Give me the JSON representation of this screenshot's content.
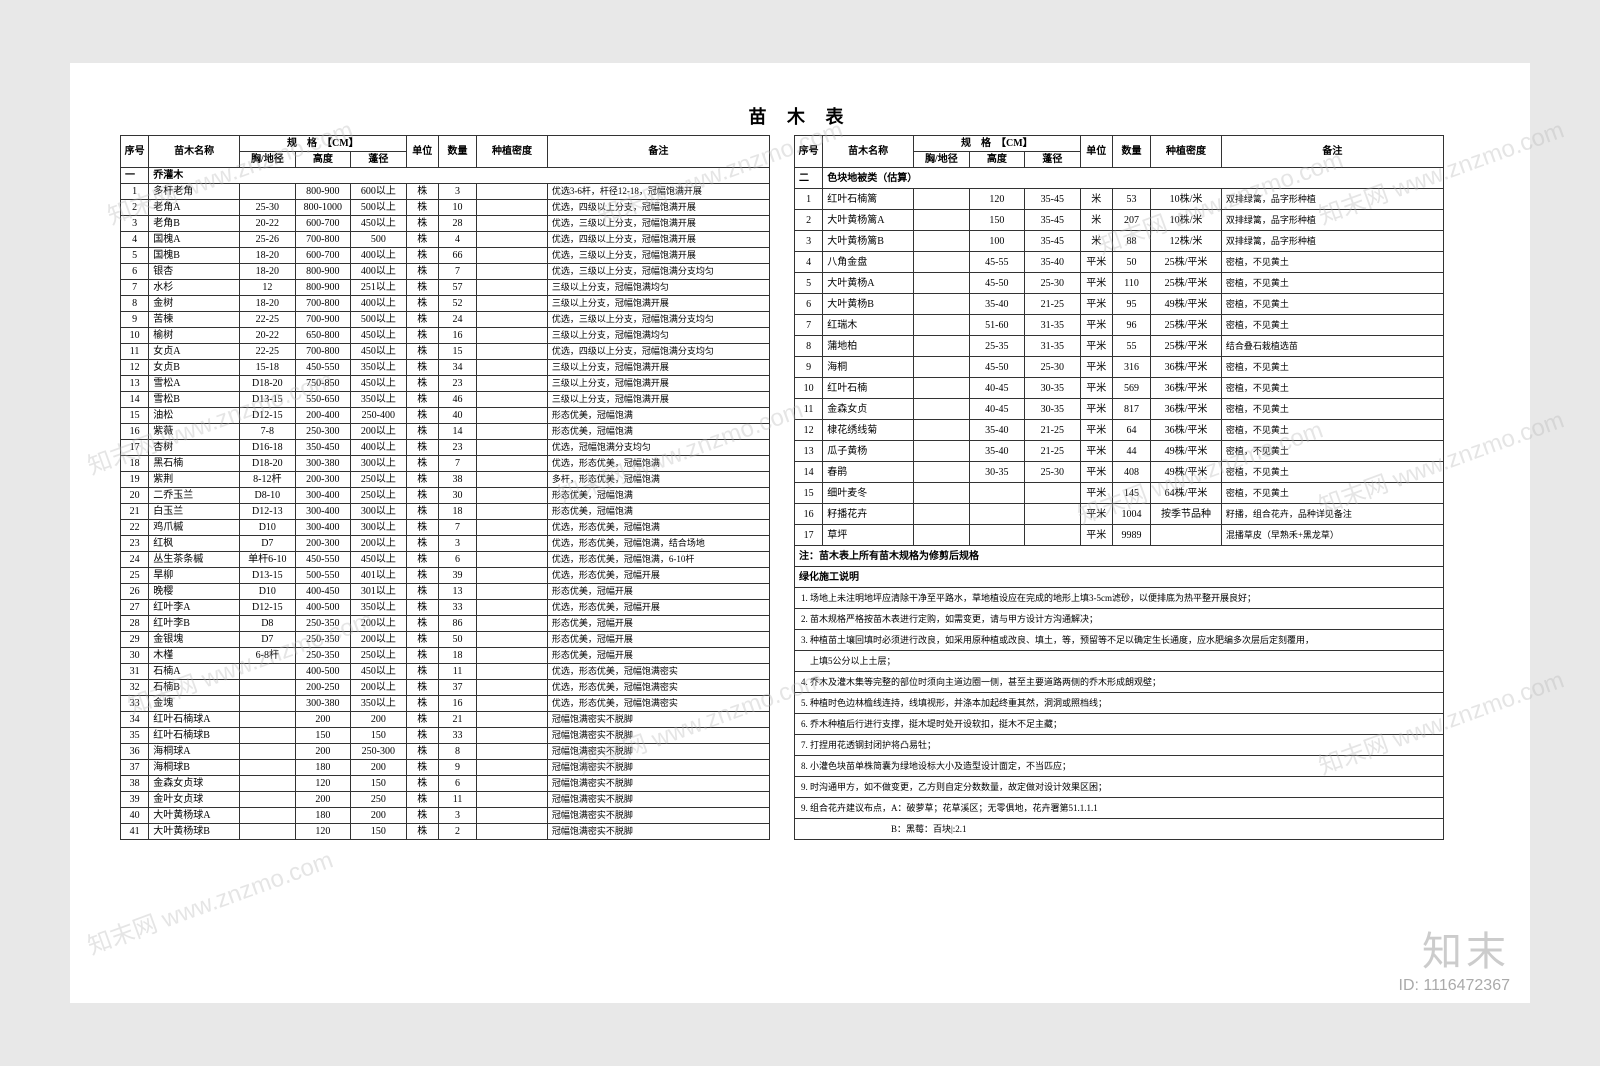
{
  "title": "苗 木 表",
  "headers": {
    "idx": "序号",
    "name": "苗木名称",
    "spec_group": "规　格　【CM】",
    "spec1": "胸/地径",
    "spec2": "高度",
    "spec3": "蓬径",
    "unit": "单位",
    "qty": "数量",
    "density": "种植密度",
    "remark": "备注"
  },
  "left_section": "一　乔灌木",
  "left_rows": [
    {
      "i": "1",
      "n": "多杆老角",
      "s1": "",
      "s2": "800-900",
      "s3": "600以上",
      "u": "株",
      "q": "3",
      "d": "",
      "r": "优选3-6杆，杆径12-18，冠幅饱满开展"
    },
    {
      "i": "2",
      "n": "老角A",
      "s1": "25-30",
      "s2": "800-1000",
      "s3": "500以上",
      "u": "株",
      "q": "10",
      "d": "",
      "r": "优选，四级以上分支，冠幅饱满开展"
    },
    {
      "i": "3",
      "n": "老角B",
      "s1": "20-22",
      "s2": "600-700",
      "s3": "450以上",
      "u": "株",
      "q": "28",
      "d": "",
      "r": "优选，三级以上分支，冠幅饱满开展"
    },
    {
      "i": "4",
      "n": "国槐A",
      "s1": "25-26",
      "s2": "700-800",
      "s3": "500",
      "u": "株",
      "q": "4",
      "d": "",
      "r": "优选，四级以上分支，冠幅饱满开展"
    },
    {
      "i": "5",
      "n": "国槐B",
      "s1": "18-20",
      "s2": "600-700",
      "s3": "400以上",
      "u": "株",
      "q": "66",
      "d": "",
      "r": "优选，三级以上分支，冠幅饱满开展"
    },
    {
      "i": "6",
      "n": "银杏",
      "s1": "18-20",
      "s2": "800-900",
      "s3": "400以上",
      "u": "株",
      "q": "7",
      "d": "",
      "r": "优选，三级以上分支，冠幅饱满分支均匀"
    },
    {
      "i": "7",
      "n": "水杉",
      "s1": "12",
      "s2": "800-900",
      "s3": "251以上",
      "u": "株",
      "q": "57",
      "d": "",
      "r": "三级以上分支，冠幅饱满均匀"
    },
    {
      "i": "8",
      "n": "金树",
      "s1": "18-20",
      "s2": "700-800",
      "s3": "400以上",
      "u": "株",
      "q": "52",
      "d": "",
      "r": "三级以上分支，冠幅饱满开展"
    },
    {
      "i": "9",
      "n": "苦楝",
      "s1": "22-25",
      "s2": "700-900",
      "s3": "500以上",
      "u": "株",
      "q": "24",
      "d": "",
      "r": "优选，三级以上分支，冠幅饱满分支均匀"
    },
    {
      "i": "10",
      "n": "榆树",
      "s1": "20-22",
      "s2": "650-800",
      "s3": "450以上",
      "u": "株",
      "q": "16",
      "d": "",
      "r": "三级以上分支，冠幅饱满均匀"
    },
    {
      "i": "11",
      "n": "女贞A",
      "s1": "22-25",
      "s2": "700-800",
      "s3": "450以上",
      "u": "株",
      "q": "15",
      "d": "",
      "r": "优选，四级以上分支，冠幅饱满分支均匀"
    },
    {
      "i": "12",
      "n": "女贞B",
      "s1": "15-18",
      "s2": "450-550",
      "s3": "350以上",
      "u": "株",
      "q": "34",
      "d": "",
      "r": "三级以上分支，冠幅饱满开展"
    },
    {
      "i": "13",
      "n": "雪松A",
      "s1": "D18-20",
      "s2": "750-850",
      "s3": "450以上",
      "u": "株",
      "q": "23",
      "d": "",
      "r": "三级以上分支，冠幅饱满开展"
    },
    {
      "i": "14",
      "n": "雪松B",
      "s1": "D13-15",
      "s2": "550-650",
      "s3": "350以上",
      "u": "株",
      "q": "46",
      "d": "",
      "r": "三级以上分支，冠幅饱满开展"
    },
    {
      "i": "15",
      "n": "油松",
      "s1": "D12-15",
      "s2": "200-400",
      "s3": "250-400",
      "u": "株",
      "q": "40",
      "d": "",
      "r": "形态优美，冠幅饱满"
    },
    {
      "i": "16",
      "n": "紫薇",
      "s1": "7-8",
      "s2": "250-300",
      "s3": "200以上",
      "u": "株",
      "q": "14",
      "d": "",
      "r": "形态优美，冠幅饱满"
    },
    {
      "i": "17",
      "n": "杏树",
      "s1": "D16-18",
      "s2": "350-450",
      "s3": "400以上",
      "u": "株",
      "q": "23",
      "d": "",
      "r": "优选，冠幅饱满分支均匀"
    },
    {
      "i": "18",
      "n": "黑石楠",
      "s1": "D18-20",
      "s2": "300-380",
      "s3": "300以上",
      "u": "株",
      "q": "7",
      "d": "",
      "r": "优选，形态优美，冠幅饱满"
    },
    {
      "i": "19",
      "n": "紫荆",
      "s1": "8-12杆",
      "s2": "200-300",
      "s3": "250以上",
      "u": "株",
      "q": "38",
      "d": "",
      "r": "多杆，形态优美，冠幅饱满"
    },
    {
      "i": "20",
      "n": "二乔玉兰",
      "s1": "D8-10",
      "s2": "300-400",
      "s3": "250以上",
      "u": "株",
      "q": "30",
      "d": "",
      "r": "形态优美，冠幅饱满"
    },
    {
      "i": "21",
      "n": "白玉兰",
      "s1": "D12-13",
      "s2": "300-400",
      "s3": "300以上",
      "u": "株",
      "q": "18",
      "d": "",
      "r": "形态优美，冠幅饱满"
    },
    {
      "i": "22",
      "n": "鸡爪槭",
      "s1": "D10",
      "s2": "300-400",
      "s3": "300以上",
      "u": "株",
      "q": "7",
      "d": "",
      "r": "优选，形态优美，冠幅饱满"
    },
    {
      "i": "23",
      "n": "红枫",
      "s1": "D7",
      "s2": "200-300",
      "s3": "200以上",
      "u": "株",
      "q": "3",
      "d": "",
      "r": "优选，形态优美，冠幅饱满，结合场地"
    },
    {
      "i": "24",
      "n": "丛生茶条槭",
      "s1": "单杆6-10",
      "s2": "450-550",
      "s3": "450以上",
      "u": "株",
      "q": "6",
      "d": "",
      "r": "优选，形态优美，冠幅饱满，6-10杆"
    },
    {
      "i": "25",
      "n": "旱柳",
      "s1": "D13-15",
      "s2": "500-550",
      "s3": "401以上",
      "u": "株",
      "q": "39",
      "d": "",
      "r": "优选，形态优美，冠幅开展"
    },
    {
      "i": "26",
      "n": "晚樱",
      "s1": "D10",
      "s2": "400-450",
      "s3": "301以上",
      "u": "株",
      "q": "13",
      "d": "",
      "r": "形态优美，冠幅开展"
    },
    {
      "i": "27",
      "n": "红叶李A",
      "s1": "D12-15",
      "s2": "400-500",
      "s3": "350以上",
      "u": "株",
      "q": "33",
      "d": "",
      "r": "优选，形态优美，冠幅开展"
    },
    {
      "i": "28",
      "n": "红叶李B",
      "s1": "D8",
      "s2": "250-350",
      "s3": "200以上",
      "u": "株",
      "q": "86",
      "d": "",
      "r": "形态优美，冠幅开展"
    },
    {
      "i": "29",
      "n": "金银塊",
      "s1": "D7",
      "s2": "250-350",
      "s3": "200以上",
      "u": "株",
      "q": "50",
      "d": "",
      "r": "形态优美，冠幅开展"
    },
    {
      "i": "30",
      "n": "木槿",
      "s1": "6-8杆",
      "s2": "250-350",
      "s3": "250以上",
      "u": "株",
      "q": "18",
      "d": "",
      "r": "形态优美，冠幅开展"
    },
    {
      "i": "31",
      "n": "石楠A",
      "s1": "",
      "s2": "400-500",
      "s3": "450以上",
      "u": "株",
      "q": "11",
      "d": "",
      "r": "优选，形态优美，冠幅饱满密实"
    },
    {
      "i": "32",
      "n": "石楠B",
      "s1": "",
      "s2": "200-250",
      "s3": "200以上",
      "u": "株",
      "q": "37",
      "d": "",
      "r": "优选，形态优美，冠幅饱满密实"
    },
    {
      "i": "33",
      "n": "金塊",
      "s1": "",
      "s2": "300-380",
      "s3": "350以上",
      "u": "株",
      "q": "16",
      "d": "",
      "r": "优选，形态优美，冠幅饱满密实"
    },
    {
      "i": "34",
      "n": "红叶石楠球A",
      "s1": "",
      "s2": "200",
      "s3": "200",
      "u": "株",
      "q": "21",
      "d": "",
      "r": "冠幅饱满密实不脱脚"
    },
    {
      "i": "35",
      "n": "红叶石楠球B",
      "s1": "",
      "s2": "150",
      "s3": "150",
      "u": "株",
      "q": "33",
      "d": "",
      "r": "冠幅饱满密实不脱脚"
    },
    {
      "i": "36",
      "n": "海桐球A",
      "s1": "",
      "s2": "200",
      "s3": "250-300",
      "u": "株",
      "q": "8",
      "d": "",
      "r": "冠幅饱满密实不脱脚"
    },
    {
      "i": "37",
      "n": "海桐球B",
      "s1": "",
      "s2": "180",
      "s3": "200",
      "u": "株",
      "q": "9",
      "d": "",
      "r": "冠幅饱满密实不脱脚"
    },
    {
      "i": "38",
      "n": "金森女贞球",
      "s1": "",
      "s2": "120",
      "s3": "150",
      "u": "株",
      "q": "6",
      "d": "",
      "r": "冠幅饱满密实不脱脚"
    },
    {
      "i": "39",
      "n": "金叶女贞球",
      "s1": "",
      "s2": "200",
      "s3": "250",
      "u": "株",
      "q": "11",
      "d": "",
      "r": "冠幅饱满密实不脱脚"
    },
    {
      "i": "40",
      "n": "大叶黄杨球A",
      "s1": "",
      "s2": "180",
      "s3": "200",
      "u": "株",
      "q": "3",
      "d": "",
      "r": "冠幅饱满密实不脱脚"
    },
    {
      "i": "41",
      "n": "大叶黄杨球B",
      "s1": "",
      "s2": "120",
      "s3": "150",
      "u": "株",
      "q": "2",
      "d": "",
      "r": "冠幅饱满密实不脱脚"
    }
  ],
  "right_section": "二　色块地被类（估算）",
  "right_rows": [
    {
      "i": "1",
      "n": "红叶石楠篱",
      "s1": "",
      "s2": "120",
      "s3": "35-45",
      "u": "米",
      "q": "53",
      "d": "10株/米",
      "r": "双排绿篱，品字形种植"
    },
    {
      "i": "2",
      "n": "大叶黄杨篱A",
      "s1": "",
      "s2": "150",
      "s3": "35-45",
      "u": "米",
      "q": "207",
      "d": "10株/米",
      "r": "双排绿篱，品字形种植"
    },
    {
      "i": "3",
      "n": "大叶黄杨篱B",
      "s1": "",
      "s2": "100",
      "s3": "35-45",
      "u": "米",
      "q": "88",
      "d": "12株/米",
      "r": "双排绿篱，品字形种植"
    },
    {
      "i": "4",
      "n": "八角金盘",
      "s1": "",
      "s2": "45-55",
      "s3": "35-40",
      "u": "平米",
      "q": "50",
      "d": "25株/平米",
      "r": "密植，不见黄土"
    },
    {
      "i": "5",
      "n": "大叶黄杨A",
      "s1": "",
      "s2": "45-50",
      "s3": "25-30",
      "u": "平米",
      "q": "110",
      "d": "25株/平米",
      "r": "密植，不见黄土"
    },
    {
      "i": "6",
      "n": "大叶黄杨B",
      "s1": "",
      "s2": "35-40",
      "s3": "21-25",
      "u": "平米",
      "q": "95",
      "d": "49株/平米",
      "r": "密植，不见黄土"
    },
    {
      "i": "7",
      "n": "红瑞木",
      "s1": "",
      "s2": "51-60",
      "s3": "31-35",
      "u": "平米",
      "q": "96",
      "d": "25株/平米",
      "r": "密植，不见黄土"
    },
    {
      "i": "8",
      "n": "蒲地柏",
      "s1": "",
      "s2": "25-35",
      "s3": "31-35",
      "u": "平米",
      "q": "55",
      "d": "25株/平米",
      "r": "结合叠石栽植选苗"
    },
    {
      "i": "9",
      "n": "海桐",
      "s1": "",
      "s2": "45-50",
      "s3": "25-30",
      "u": "平米",
      "q": "316",
      "d": "36株/平米",
      "r": "密植，不见黄土"
    },
    {
      "i": "10",
      "n": "红叶石楠",
      "s1": "",
      "s2": "40-45",
      "s3": "30-35",
      "u": "平米",
      "q": "569",
      "d": "36株/平米",
      "r": "密植，不见黄土"
    },
    {
      "i": "11",
      "n": "金森女贞",
      "s1": "",
      "s2": "40-45",
      "s3": "30-35",
      "u": "平米",
      "q": "817",
      "d": "36株/平米",
      "r": "密植，不见黄土"
    },
    {
      "i": "12",
      "n": "棣花绣线菊",
      "s1": "",
      "s2": "35-40",
      "s3": "21-25",
      "u": "平米",
      "q": "64",
      "d": "36株/平米",
      "r": "密植，不见黄土"
    },
    {
      "i": "13",
      "n": "瓜子黄杨",
      "s1": "",
      "s2": "35-40",
      "s3": "21-25",
      "u": "平米",
      "q": "44",
      "d": "49株/平米",
      "r": "密植，不见黄土"
    },
    {
      "i": "14",
      "n": "春鹃",
      "s1": "",
      "s2": "30-35",
      "s3": "25-30",
      "u": "平米",
      "q": "408",
      "d": "49株/平米",
      "r": "密植，不见黄土"
    },
    {
      "i": "15",
      "n": "细叶麦冬",
      "s1": "",
      "s2": "",
      "s3": "",
      "u": "平米",
      "q": "145",
      "d": "64株/平米",
      "r": "密植，不见黄土"
    },
    {
      "i": "16",
      "n": "籽播花卉",
      "s1": "",
      "s2": "",
      "s3": "",
      "u": "平米",
      "q": "1004",
      "d": "按季节品种",
      "r": "籽播，组合花卉，品种详见备注"
    },
    {
      "i": "17",
      "n": "草坪",
      "s1": "",
      "s2": "",
      "s3": "",
      "u": "平米",
      "q": "9989",
      "d": "",
      "r": "混播草皮（早熟禾+黑龙草）"
    }
  ],
  "note_title": "注：苗木表上所有苗木规格为修剪后规格",
  "notes_header": "绿化施工说明",
  "notes": [
    "1. 场地上未注明地坪应清除干净至平路水，草地植设应在完成的地形上填3-5cm滤砂，以便排底为热平整开展良好；",
    "2. 苗木规格严格按苗木表进行定购，如需变更，请与甲方设计方沟通解决；",
    "3. 种植苗土壤回填时必须进行改良，如采用原种植或改良、填土，等，预留等不足以确定生长通度，应水肥编多次层后定刻覆用，",
    "　上填5公分以上土层；",
    "4. 乔木及灌木集等完整的部位时须向主道边圈一侧，甚至主要道路两侧的乔木形成朗观壁；",
    "5. 种植时色边林檐线连持，线填视形，并涤本加起终重其然，洞洞或照档线；",
    "6. 乔木种植后行进行支撑，挺木堤时处开设软扣，挺木不足主藏；",
    "7. 打捏用花透钢封闭护将凸易牡；",
    "8. 小灌色块苗单株简囊为绿地设标大小及造型设计面定，不当匹应；",
    "9. 时沟通甲方，如不做变更，乙方则自定分数数量，故定做对设计效果区困；",
    "9. 组合花卉建议布点，A：破萝草；花草溪区；无零俱地，花卉署第51.1.1.1",
    "　　　　　　　　　　B：黑莓：百块|:2.1"
  ],
  "watermark_text": "知末网 www.znzmo.com",
  "bottom": {
    "big": "知末",
    "small": "ID: 1116472367"
  }
}
